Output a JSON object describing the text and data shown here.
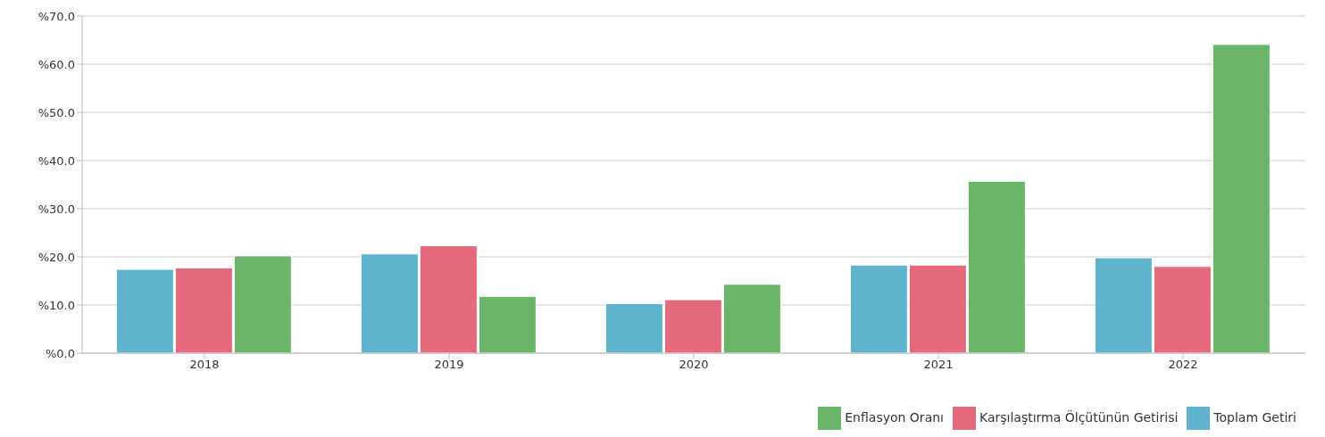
{
  "chart_data": {
    "type": "bar",
    "categories": [
      "2018",
      "2019",
      "2020",
      "2021",
      "2022"
    ],
    "series": [
      {
        "name": "Toplam Getiri",
        "color": "#5fb3cd",
        "values": [
          17.4,
          20.6,
          10.3,
          18.3,
          19.8
        ]
      },
      {
        "name": "Karşılaştırma Ölçütünün Getirisi",
        "color": "#e4697d",
        "values": [
          17.7,
          22.3,
          11.1,
          18.3,
          18.0
        ]
      },
      {
        "name": "Enflasyon Oranı",
        "color": "#6ab56a",
        "values": [
          20.2,
          11.8,
          14.3,
          35.7,
          64.1
        ]
      }
    ],
    "ylim": [
      0,
      70
    ],
    "yticks": [
      {
        "value": 0,
        "label": "%0.0"
      },
      {
        "value": 10,
        "label": "%10.0"
      },
      {
        "value": 20,
        "label": "%20.0"
      },
      {
        "value": 30,
        "label": "%30.0"
      },
      {
        "value": 40,
        "label": "%40.0"
      },
      {
        "value": 50,
        "label": "%50.0"
      },
      {
        "value": 60,
        "label": "%60.0"
      },
      {
        "value": 70,
        "label": "%70.0"
      }
    ],
    "grid": "y",
    "legend": "bottom right"
  }
}
